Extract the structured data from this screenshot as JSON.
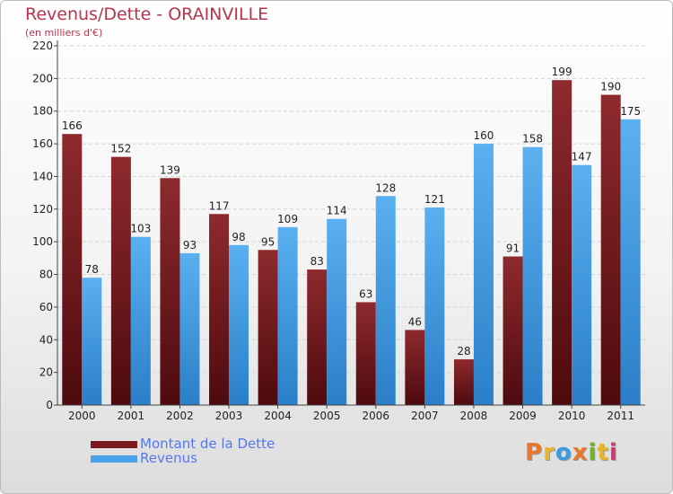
{
  "chart_data": {
    "type": "bar",
    "title": "Revenus/Dette - ORAINVILLE",
    "subtitle": "(en milliers d'€)",
    "categories": [
      "2000",
      "2001",
      "2002",
      "2003",
      "2004",
      "2005",
      "2006",
      "2007",
      "2008",
      "2009",
      "2010",
      "2011"
    ],
    "series": [
      {
        "name": "Montant de la Dette",
        "color": "#7a1a1f",
        "values": [
          166,
          152,
          139,
          117,
          95,
          83,
          63,
          46,
          28,
          91,
          199,
          190
        ]
      },
      {
        "name": "Revenus",
        "color": "#4aa3e8",
        "values": [
          78,
          103,
          93,
          98,
          109,
          114,
          128,
          121,
          160,
          158,
          147,
          175
        ]
      }
    ],
    "ylim": [
      0,
      220
    ],
    "yticks": [
      0,
      20,
      40,
      60,
      80,
      100,
      120,
      140,
      160,
      180,
      200,
      220
    ],
    "grid": true,
    "legend_position": "bottom-left"
  },
  "logo": {
    "letters": [
      "P",
      "r",
      "o",
      "x",
      "i",
      "t",
      "i"
    ],
    "colors": [
      "#e8782a",
      "#e8b62a",
      "#3a9be0",
      "#e8782a",
      "#6ab82a",
      "#e8b62a",
      "#d13a6a"
    ]
  }
}
